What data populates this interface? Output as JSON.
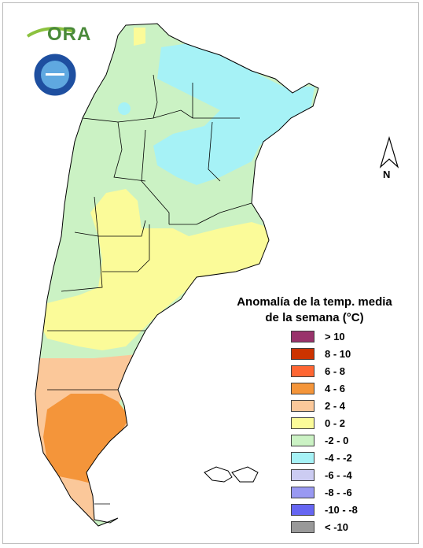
{
  "logo": {
    "text": "ORA"
  },
  "compass": {
    "label": "N"
  },
  "legend": {
    "title_line1": "Anomalía de la temp. media",
    "title_line2": "de la semana (°C)",
    "items": [
      {
        "label": "> 10",
        "color": "#99336b"
      },
      {
        "label": "8 - 10",
        "color": "#cc3300"
      },
      {
        "label": "6 - 8",
        "color": "#ff6633"
      },
      {
        "label": "4 - 6",
        "color": "#f4953a"
      },
      {
        "label": "2 - 4",
        "color": "#fbc89a"
      },
      {
        "label": "0 - 2",
        "color": "#fbfb99"
      },
      {
        "label": "-2 - 0",
        "color": "#cbf2c4"
      },
      {
        "label": "-4 - -2",
        "color": "#a6f2f6"
      },
      {
        "label": "-6 - -4",
        "color": "#ccccf2"
      },
      {
        "label": "-8 - -6",
        "color": "#9999f2"
      },
      {
        "label": "-10 - -8",
        "color": "#6666f2"
      },
      {
        "label": "< -10",
        "color": "#999999"
      }
    ]
  },
  "map_colors": {
    "outline": "#000000",
    "neg_0_2": "#cbf2c4",
    "neg_2_4": "#a6f2f6",
    "pos_0_2": "#fbfb99",
    "pos_2_4": "#fbc89a",
    "pos_4_6": "#f4953a"
  }
}
